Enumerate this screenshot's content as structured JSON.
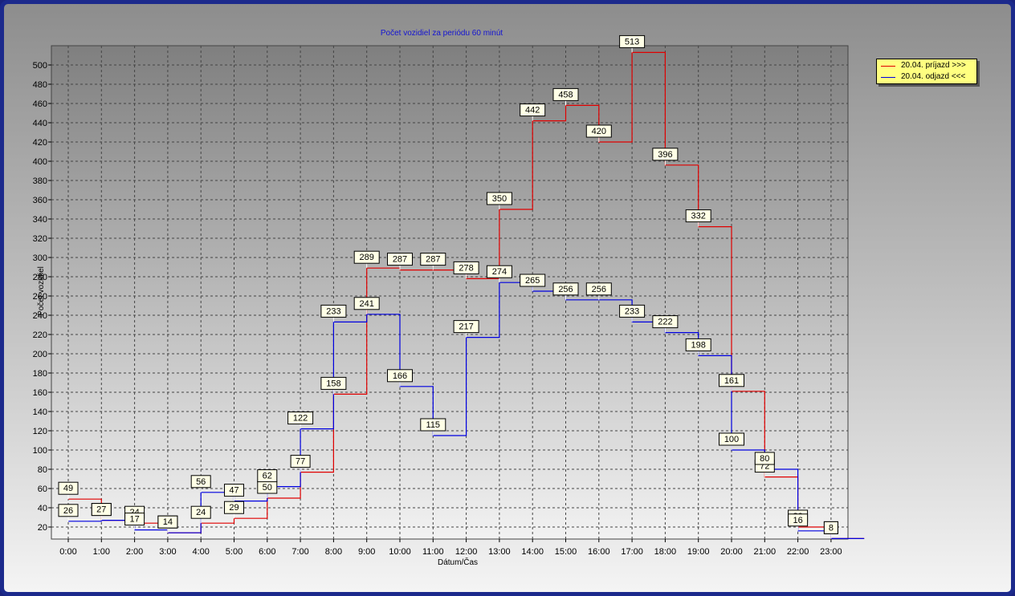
{
  "chart_data": {
    "type": "line",
    "step": true,
    "title": "Počet vozidiel za periódu 60 minút",
    "xlabel": "Dátum/Čas",
    "ylabel": "Počet vozidiel",
    "categories": [
      "0:00",
      "1:00",
      "2:00",
      "3:00",
      "4:00",
      "5:00",
      "6:00",
      "7:00",
      "8:00",
      "9:00",
      "10:00",
      "11:00",
      "12:00",
      "13:00",
      "14:00",
      "15:00",
      "16:00",
      "17:00",
      "18:00",
      "19:00",
      "20:00",
      "21:00",
      "22:00",
      "23:00"
    ],
    "ylim": [
      5,
      515
    ],
    "yticks": [
      20,
      40,
      60,
      80,
      100,
      120,
      140,
      160,
      180,
      200,
      220,
      240,
      260,
      280,
      300,
      320,
      340,
      360,
      380,
      400,
      420,
      440,
      460,
      480,
      500
    ],
    "grid": true,
    "legend_position": "top-right, outside plot",
    "series": [
      {
        "name": "20.04.  príjazd >>>",
        "color": "#e00000",
        "values": [
          49,
          27,
          24,
          14,
          24,
          29,
          50,
          77,
          158,
          289,
          287,
          287,
          278,
          350,
          442,
          458,
          420,
          513,
          396,
          332,
          161,
          72,
          20,
          8
        ]
      },
      {
        "name": "20.04.  odjazd <<<",
        "color": "#0000e0",
        "values": [
          26,
          27,
          17,
          14,
          56,
          47,
          62,
          122,
          233,
          241,
          166,
          115,
          217,
          274,
          265,
          256,
          256,
          233,
          222,
          198,
          100,
          80,
          16,
          8
        ]
      }
    ]
  }
}
